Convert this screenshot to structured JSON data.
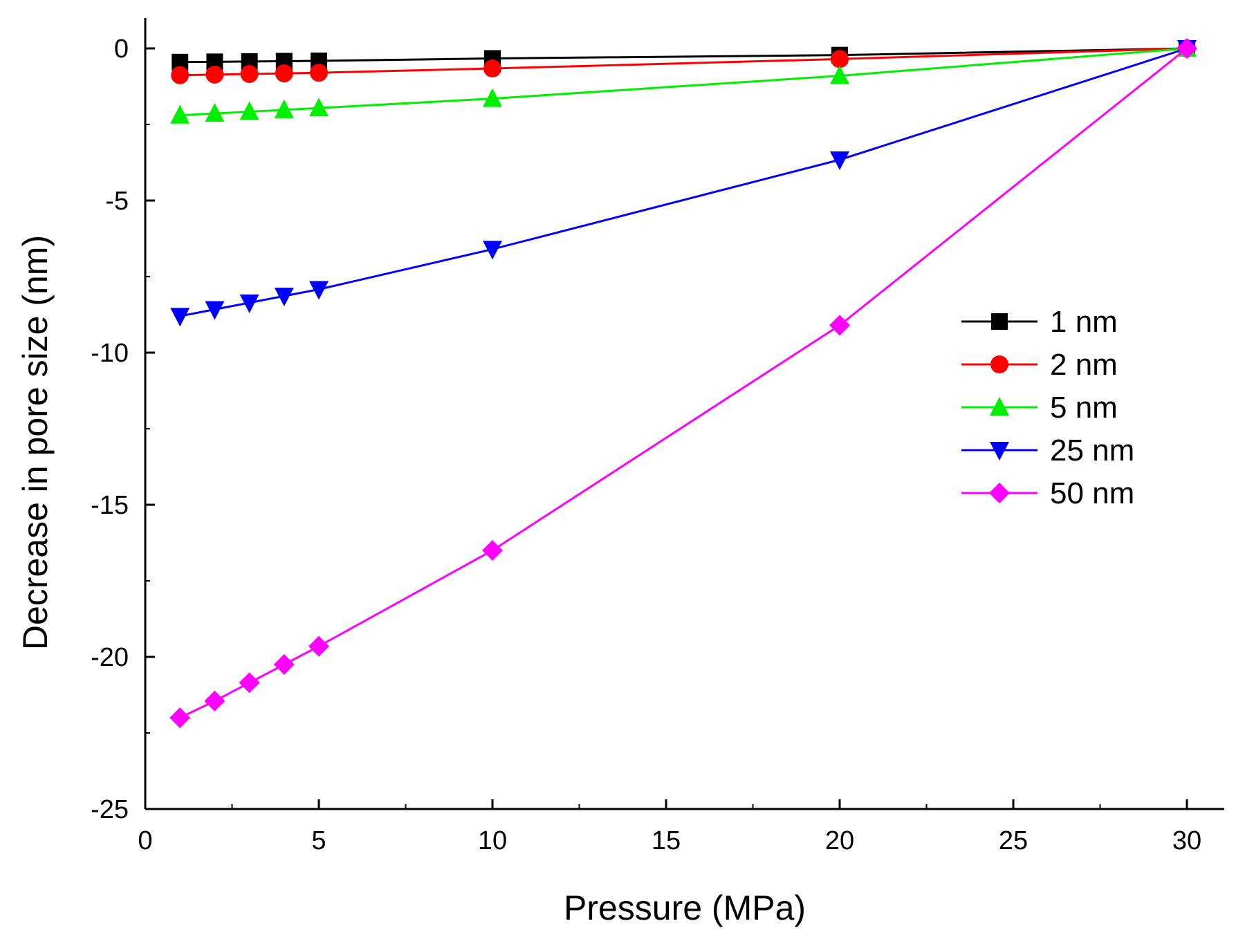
{
  "chart_data": {
    "type": "line",
    "title": "",
    "xlabel": "Pressure (MPa)",
    "ylabel": "Decrease in pore size (nm)",
    "xlim": [
      0,
      31
    ],
    "ylim": [
      -25,
      1
    ],
    "xticks": [
      0,
      5,
      10,
      15,
      20,
      25,
      30
    ],
    "yticks": [
      0,
      -5,
      -10,
      -15,
      -20,
      -25
    ],
    "grid": false,
    "legend_position": "right",
    "x": [
      1,
      2,
      3,
      4,
      5,
      10,
      20,
      30
    ],
    "series": [
      {
        "name": "1 nm",
        "color": "#000000",
        "marker": "square",
        "values": [
          -0.45,
          -0.44,
          -0.43,
          -0.42,
          -0.41,
          -0.33,
          -0.22,
          0
        ]
      },
      {
        "name": "2 nm",
        "color": "#ff0000",
        "marker": "circle",
        "values": [
          -0.88,
          -0.86,
          -0.84,
          -0.82,
          -0.8,
          -0.66,
          -0.35,
          0
        ]
      },
      {
        "name": "5 nm",
        "color": "#00ee00",
        "marker": "triangle-up",
        "values": [
          -2.2,
          -2.14,
          -2.08,
          -2.02,
          -1.96,
          -1.65,
          -0.9,
          0
        ]
      },
      {
        "name": "25 nm",
        "color": "#0000ff",
        "marker": "triangle-down",
        "values": [
          -8.8,
          -8.58,
          -8.36,
          -8.14,
          -7.92,
          -6.6,
          -3.66,
          0
        ]
      },
      {
        "name": "50 nm",
        "color": "#ff00ff",
        "marker": "diamond",
        "values": [
          -22.0,
          -21.45,
          -20.85,
          -20.25,
          -19.65,
          -16.5,
          -9.1,
          0
        ]
      }
    ]
  }
}
